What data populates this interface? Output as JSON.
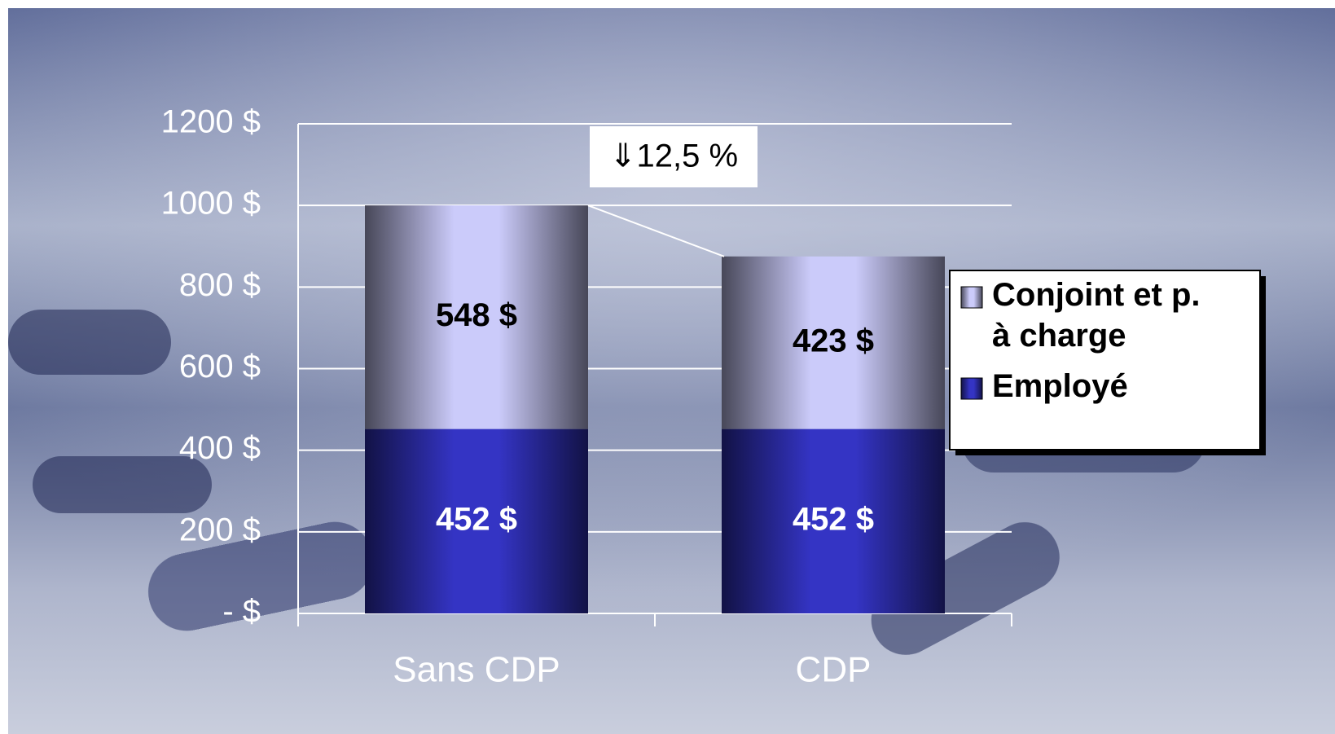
{
  "chart_data": {
    "type": "stacked_bar",
    "categories": [
      "Sans CDP",
      "CDP"
    ],
    "series": [
      {
        "name": "Employé",
        "color": "#3434c4",
        "values": [
          452,
          452
        ],
        "value_labels": [
          "452 $",
          "452 $"
        ]
      },
      {
        "name": "Conjoint et p. à charge",
        "color": "#cbcbfa",
        "values": [
          548,
          423
        ],
        "value_labels": [
          "548 $",
          "423 $"
        ]
      }
    ],
    "ylim": [
      0,
      1200
    ],
    "yticks": [
      {
        "value": 0,
        "label": "-  $"
      },
      {
        "value": 200,
        "label": "200  $"
      },
      {
        "value": 400,
        "label": "400  $"
      },
      {
        "value": 600,
        "label": "600  $"
      },
      {
        "value": 800,
        "label": "800  $"
      },
      {
        "value": 1000,
        "label": "1000  $"
      },
      {
        "value": 1200,
        "label": "1200  $"
      }
    ],
    "grid": true,
    "legend": "right",
    "annotation": "⇓12,5 %"
  }
}
